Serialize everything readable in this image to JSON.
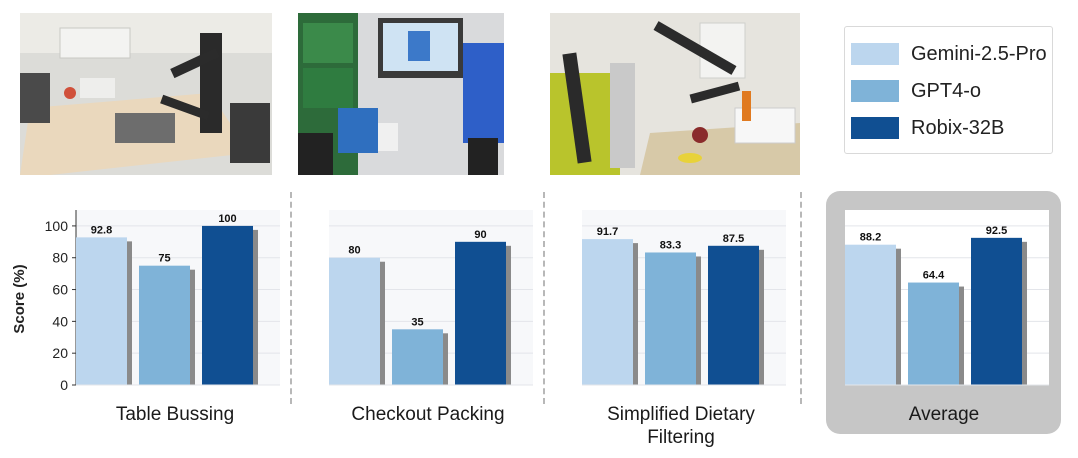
{
  "colors": {
    "gemini": "#bcd6ee",
    "gpt4o": "#7fb3d8",
    "robix": "#104f92",
    "shadow": "#8a8a8a",
    "average_panel": "#c6c6c6"
  },
  "legend": {
    "items": [
      {
        "label": "Gemini-2.5-Pro",
        "color": "#bcd6ee"
      },
      {
        "label": "GPT4-o",
        "color": "#7fb3d8"
      },
      {
        "label": "Robix-32B",
        "color": "#104f92"
      }
    ]
  },
  "photos": [
    {
      "icon": "robot-table-bussing-photo"
    },
    {
      "icon": "checkout-packing-photo"
    },
    {
      "icon": "dietary-filtering-photo"
    }
  ],
  "chart_data": [
    {
      "type": "bar",
      "title": "Table Bussing",
      "ylabel": "Score (%)",
      "ylim": [
        0,
        110
      ],
      "yticks": [
        0,
        20,
        40,
        60,
        80,
        100
      ],
      "grid": true,
      "categories": [
        "Gemini-2.5-Pro",
        "GPT4-o",
        "Robix-32B"
      ],
      "values": [
        92.8,
        75,
        100
      ],
      "value_labels": [
        "92.8",
        "75",
        "100"
      ]
    },
    {
      "type": "bar",
      "title": "Checkout Packing",
      "ylim": [
        0,
        110
      ],
      "grid": true,
      "categories": [
        "Gemini-2.5-Pro",
        "GPT4-o",
        "Robix-32B"
      ],
      "values": [
        80,
        35,
        90
      ],
      "value_labels": [
        "80",
        "35",
        "90"
      ]
    },
    {
      "type": "bar",
      "title_lines": [
        "Simplified Dietary",
        "Filtering"
      ],
      "ylim": [
        0,
        110
      ],
      "grid": true,
      "categories": [
        "Gemini-2.5-Pro",
        "GPT4-o",
        "Robix-32B"
      ],
      "values": [
        91.7,
        83.3,
        87.5
      ],
      "value_labels": [
        "91.7",
        "83.3",
        "87.5"
      ]
    },
    {
      "type": "bar",
      "title": "Average",
      "ylim": [
        0,
        110
      ],
      "grid": true,
      "categories": [
        "Gemini-2.5-Pro",
        "GPT4-o",
        "Robix-32B"
      ],
      "values": [
        88.2,
        64.4,
        92.5
      ],
      "value_labels": [
        "88.2",
        "64.4",
        "92.5"
      ]
    }
  ]
}
